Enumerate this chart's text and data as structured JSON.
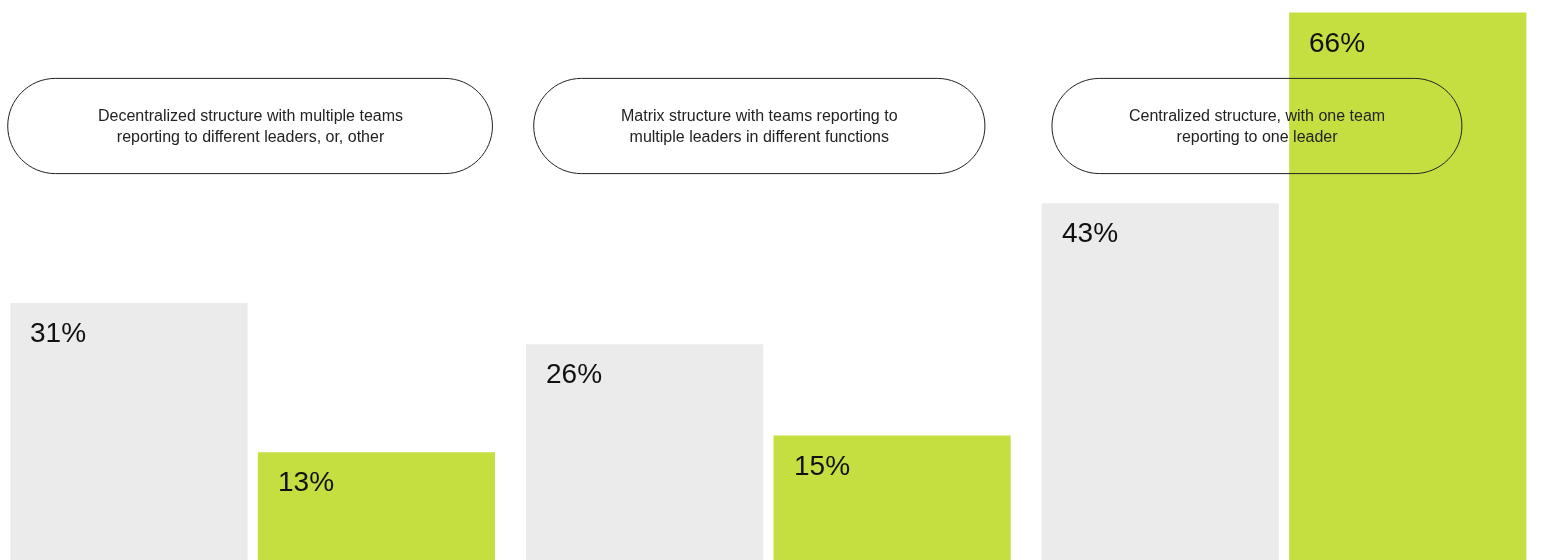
{
  "chart_data": {
    "type": "bar",
    "categories": [
      "Decentralized structure with multiple teams reporting to different leaders, or, other",
      "Matrix structure with teams reporting to multiple leaders in different functions",
      "Centralized structure, with one team reporting to one leader"
    ],
    "series": [
      {
        "color": "#ebebeb",
        "values": [
          31,
          26,
          43
        ],
        "value_labels": [
          "31%",
          "26%",
          "43%"
        ]
      },
      {
        "color": "#c5df41",
        "values": [
          13,
          15,
          66
        ],
        "value_labels": [
          "13%",
          "15%",
          "66%"
        ]
      }
    ]
  }
}
